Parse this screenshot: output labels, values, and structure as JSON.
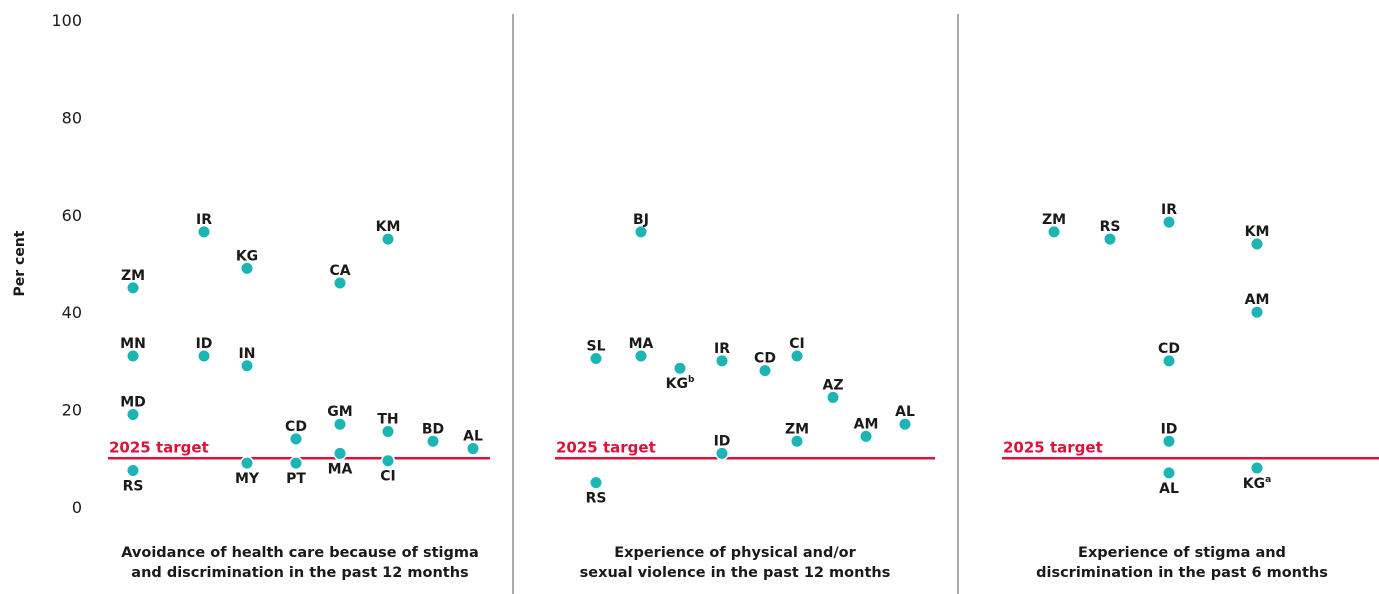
{
  "chart_data": {
    "type": "scatter",
    "ylabel": "Per cent",
    "ylim": [
      0,
      100
    ],
    "yticks": [
      "0",
      "20",
      "40",
      "60",
      "80",
      "100"
    ],
    "target": {
      "label": "2025 target",
      "value": 10,
      "color": "#e0103c"
    },
    "point_color": "#1bb5b5",
    "panels": [
      {
        "title": [
          "Avoidance of health care because of stigma",
          "and discrimination in the past 12 months"
        ],
        "points": [
          {
            "label": "ZM",
            "value": 45,
            "col": 0,
            "label_pos": "above"
          },
          {
            "label": "MN",
            "value": 31,
            "col": 0,
            "label_pos": "above"
          },
          {
            "label": "MD",
            "value": 19,
            "col": 0,
            "label_pos": "above"
          },
          {
            "label": "RS",
            "value": 7.5,
            "col": 0,
            "label_pos": "below"
          },
          {
            "label": "IR",
            "value": 56.5,
            "col": 1,
            "label_pos": "above"
          },
          {
            "label": "ID",
            "value": 31,
            "col": 1,
            "label_pos": "above"
          },
          {
            "label": "KG",
            "value": 49,
            "col": 2,
            "label_pos": "above"
          },
          {
            "label": "IN",
            "value": 29,
            "col": 2,
            "label_pos": "above"
          },
          {
            "label": "MY",
            "value": 9,
            "col": 2,
            "label_pos": "below"
          },
          {
            "label": "CD",
            "value": 14,
            "col": 3,
            "label_pos": "above"
          },
          {
            "label": "PT",
            "value": 9,
            "col": 3,
            "label_pos": "below"
          },
          {
            "label": "CA",
            "value": 46,
            "col": 4,
            "label_pos": "above"
          },
          {
            "label": "GM",
            "value": 17,
            "col": 4,
            "label_pos": "above"
          },
          {
            "label": "MA",
            "value": 11,
            "col": 4,
            "label_pos": "below"
          },
          {
            "label": "KM",
            "value": 55,
            "col": 5,
            "label_pos": "above"
          },
          {
            "label": "TH",
            "value": 15.5,
            "col": 5,
            "label_pos": "above"
          },
          {
            "label": "CI",
            "value": 9.5,
            "col": 5,
            "label_pos": "below"
          },
          {
            "label": "BD",
            "value": 13.5,
            "col": 6,
            "label_pos": "above"
          },
          {
            "label": "AL",
            "value": 12,
            "col": 7,
            "label_pos": "above"
          }
        ]
      },
      {
        "title": [
          "Experience of physical and/or",
          "sexual violence in the past 12 months"
        ],
        "points": [
          {
            "label": "SL",
            "value": 30.5,
            "col": 0,
            "label_pos": "above"
          },
          {
            "label": "RS",
            "value": 5,
            "col": 0,
            "label_pos": "below"
          },
          {
            "label": "BJ",
            "value": 56.5,
            "col": 1,
            "label_pos": "above"
          },
          {
            "label": "MA",
            "value": 31,
            "col": 1,
            "label_pos": "above"
          },
          {
            "label": "KG",
            "sup": "b",
            "value": 28.5,
            "col": 2,
            "label_pos": "below"
          },
          {
            "label": "IR",
            "value": 30,
            "col": 3,
            "label_pos": "above"
          },
          {
            "label": "ID",
            "value": 11,
            "col": 3,
            "label_pos": "above"
          },
          {
            "label": "CD",
            "value": 28,
            "col": 4,
            "label_pos": "above"
          },
          {
            "label": "CI",
            "value": 31,
            "col": 5,
            "label_pos": "above"
          },
          {
            "label": "ZM",
            "value": 13.5,
            "col": 5,
            "label_pos": "above"
          },
          {
            "label": "AZ",
            "value": 22.5,
            "col": 6,
            "label_pos": "above"
          },
          {
            "label": "AM",
            "value": 14.5,
            "col": 7,
            "label_pos": "above"
          },
          {
            "label": "AL",
            "value": 17,
            "col": 8,
            "label_pos": "above"
          }
        ]
      },
      {
        "title": [
          "Experience of stigma and",
          "discrimination in the past 6 months"
        ],
        "points": [
          {
            "label": "ZM",
            "value": 56.5,
            "col": 0,
            "label_pos": "above"
          },
          {
            "label": "RS",
            "value": 55,
            "col": 1,
            "label_pos": "above"
          },
          {
            "label": "IR",
            "value": 58.5,
            "col": 2,
            "label_pos": "above"
          },
          {
            "label": "CD",
            "value": 30,
            "col": 2,
            "label_pos": "above"
          },
          {
            "label": "ID",
            "value": 13.5,
            "col": 2,
            "label_pos": "above"
          },
          {
            "label": "AL",
            "value": 7,
            "col": 2,
            "label_pos": "below"
          },
          {
            "label": "KM",
            "value": 54,
            "col": 3,
            "label_pos": "above"
          },
          {
            "label": "AM",
            "value": 40,
            "col": 3,
            "label_pos": "above"
          },
          {
            "label": "KG",
            "sup": "a",
            "value": 8,
            "col": 3,
            "label_pos": "below"
          }
        ]
      }
    ]
  }
}
